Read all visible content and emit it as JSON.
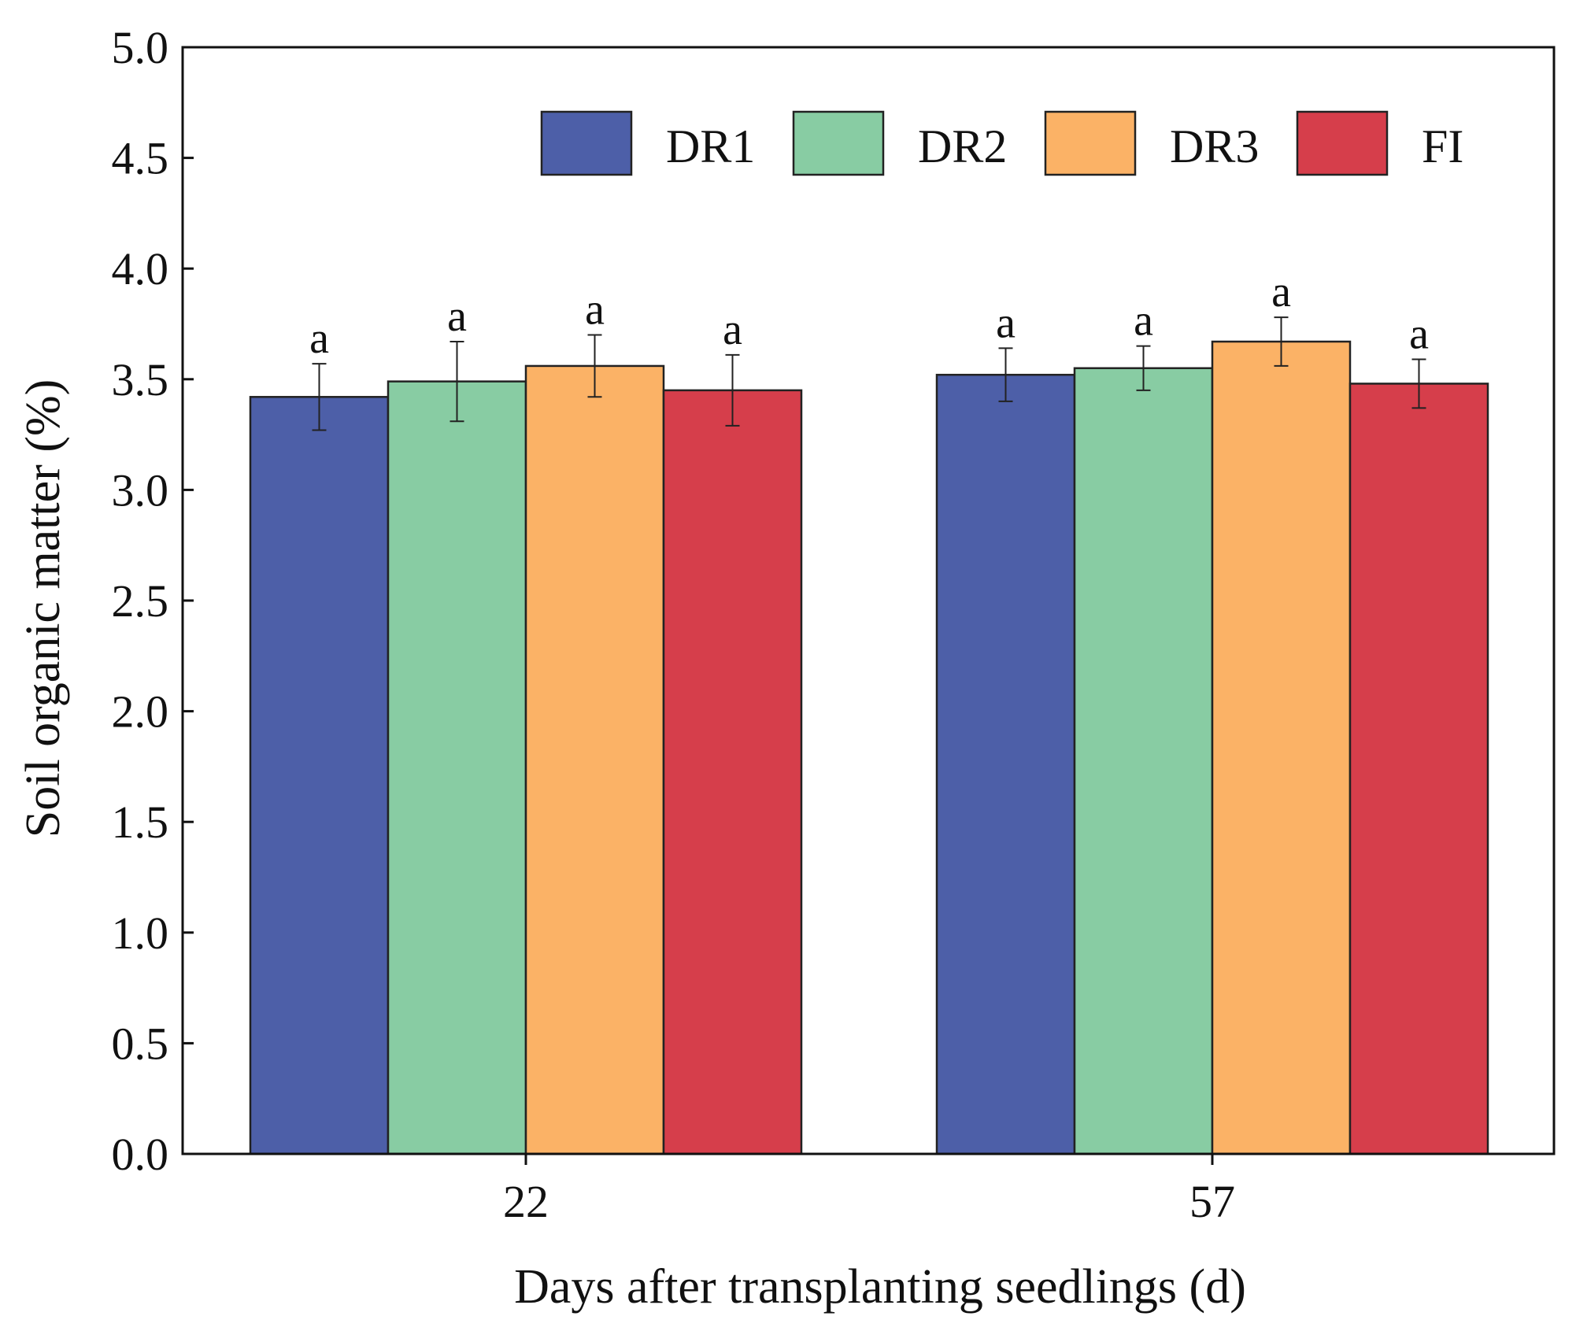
{
  "chart_data": {
    "type": "bar",
    "xlabel": "Days after transplanting seedlings (d)",
    "ylabel": "Soil organic matter (%)",
    "ylim": [
      0.0,
      5.0
    ],
    "yticks": [
      "0.0",
      "0.5",
      "1.0",
      "1.5",
      "2.0",
      "2.5",
      "3.0",
      "3.5",
      "4.0",
      "4.5",
      "5.0"
    ],
    "categories": [
      "22",
      "57"
    ],
    "legend_position": "top-right",
    "grid": false,
    "series": [
      {
        "name": "DR1",
        "color": "#4d5fa8",
        "values": [
          3.42,
          3.52
        ],
        "errors": [
          0.15,
          0.12
        ],
        "labels": [
          "a",
          "a"
        ]
      },
      {
        "name": "DR2",
        "color": "#88cca3",
        "values": [
          3.49,
          3.55
        ],
        "errors": [
          0.18,
          0.1
        ],
        "labels": [
          "a",
          "a"
        ]
      },
      {
        "name": "DR3",
        "color": "#fbb266",
        "values": [
          3.56,
          3.67
        ],
        "errors": [
          0.14,
          0.11
        ],
        "labels": [
          "a",
          "a"
        ]
      },
      {
        "name": "FI",
        "color": "#d63e4b",
        "values": [
          3.45,
          3.48
        ],
        "errors": [
          0.16,
          0.11
        ],
        "labels": [
          "a",
          "a"
        ]
      }
    ]
  }
}
